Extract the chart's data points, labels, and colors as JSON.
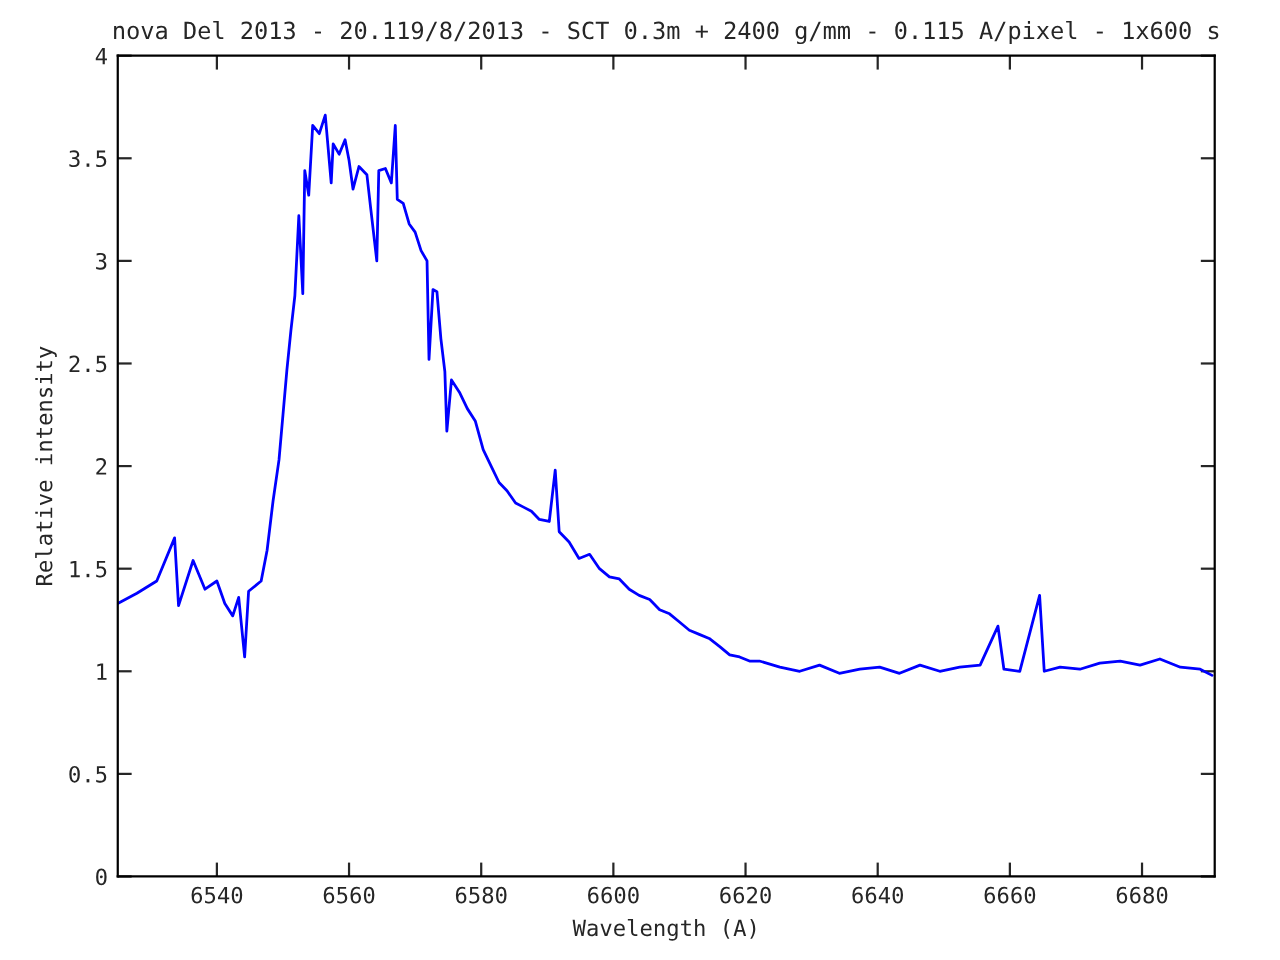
{
  "chart_data": {
    "type": "line",
    "title": "nova Del 2013 - 20.119/8/2013 - SCT 0.3m + 2400 g/mm - 0.115 A/pixel - 1x600 s",
    "xlabel": "Wavelength (A)",
    "ylabel": "Relative intensity",
    "x": [
      6525,
      6527.9,
      6530.9,
      6533.6,
      6534.2,
      6536.4,
      6538.2,
      6540.0,
      6541.2,
      6542.4,
      6543.3,
      6544.2,
      6544.8,
      6546.7,
      6547.6,
      6548.5,
      6549.4,
      6550.0,
      6550.6,
      6551.2,
      6551.8,
      6552.4,
      6553.0,
      6553.3,
      6553.9,
      6554.5,
      6555.5,
      6556.4,
      6557.3,
      6557.6,
      6558.5,
      6559.4,
      6560.0,
      6560.6,
      6561.5,
      6562.7,
      6563.3,
      6564.2,
      6564.5,
      6565.5,
      6566.4,
      6567.0,
      6567.3,
      6568.2,
      6569.1,
      6570.0,
      6570.9,
      6571.8,
      6572.1,
      6572.7,
      6573.3,
      6573.9,
      6574.5,
      6574.8,
      6575.5,
      6576.7,
      6577.9,
      6579.1,
      6580.3,
      6581.5,
      6582.7,
      6583.9,
      6585.2,
      6586.4,
      6587.6,
      6588.8,
      6590.3,
      6591.2,
      6591.8,
      6593.3,
      6594.8,
      6596.4,
      6597.9,
      6599.4,
      6600.9,
      6602.4,
      6603.9,
      6605.5,
      6607.0,
      6608.5,
      6610.0,
      6611.5,
      6613.0,
      6614.5,
      6616.1,
      6617.6,
      6619.1,
      6620.6,
      6622.1,
      6625.2,
      6628.2,
      6631.2,
      6634.2,
      6637.3,
      6640.3,
      6643.3,
      6646.4,
      6649.4,
      6652.4,
      6655.5,
      6658.2,
      6659.1,
      6661.5,
      6664.5,
      6665.2,
      6667.6,
      6670.6,
      6673.6,
      6676.7,
      6679.7,
      6682.7,
      6685.8,
      6688.8,
      6690.6
    ],
    "series": [
      {
        "color": "#0000ff",
        "values": [
          1.33,
          1.38,
          1.44,
          1.65,
          1.32,
          1.54,
          1.4,
          1.44,
          1.33,
          1.27,
          1.36,
          1.07,
          1.39,
          1.44,
          1.59,
          1.83,
          2.03,
          2.25,
          2.47,
          2.66,
          2.83,
          3.22,
          2.84,
          3.44,
          3.32,
          3.66,
          3.62,
          3.71,
          3.38,
          3.57,
          3.52,
          3.59,
          3.49,
          3.35,
          3.46,
          3.42,
          3.25,
          3.0,
          3.44,
          3.45,
          3.38,
          3.66,
          3.3,
          3.28,
          3.18,
          3.14,
          3.05,
          3.0,
          2.52,
          2.86,
          2.85,
          2.62,
          2.46,
          2.17,
          2.42,
          2.36,
          2.28,
          2.22,
          2.08,
          2.0,
          1.92,
          1.88,
          1.82,
          1.8,
          1.78,
          1.74,
          1.73,
          1.98,
          1.68,
          1.63,
          1.55,
          1.57,
          1.5,
          1.46,
          1.45,
          1.4,
          1.37,
          1.35,
          1.3,
          1.28,
          1.24,
          1.2,
          1.18,
          1.16,
          1.12,
          1.08,
          1.07,
          1.05,
          1.05,
          1.02,
          1.0,
          1.03,
          0.99,
          1.01,
          1.02,
          0.99,
          1.03,
          1.0,
          1.02,
          1.03,
          1.22,
          1.01,
          1.0,
          1.37,
          1.0,
          1.02,
          1.01,
          1.04,
          1.05,
          1.03,
          1.06,
          1.02,
          1.01,
          0.98
        ]
      }
    ],
    "xlim": [
      6525,
      6691
    ],
    "xticks": [
      6540,
      6560,
      6580,
      6600,
      6620,
      6640,
      6660,
      6680
    ],
    "ylim": [
      0,
      4
    ],
    "yticks": [
      0,
      0.5,
      1,
      1.5,
      2,
      2.5,
      3,
      3.5,
      4
    ],
    "grid": false,
    "legend": false,
    "marker": "none",
    "line_style": "solid"
  }
}
